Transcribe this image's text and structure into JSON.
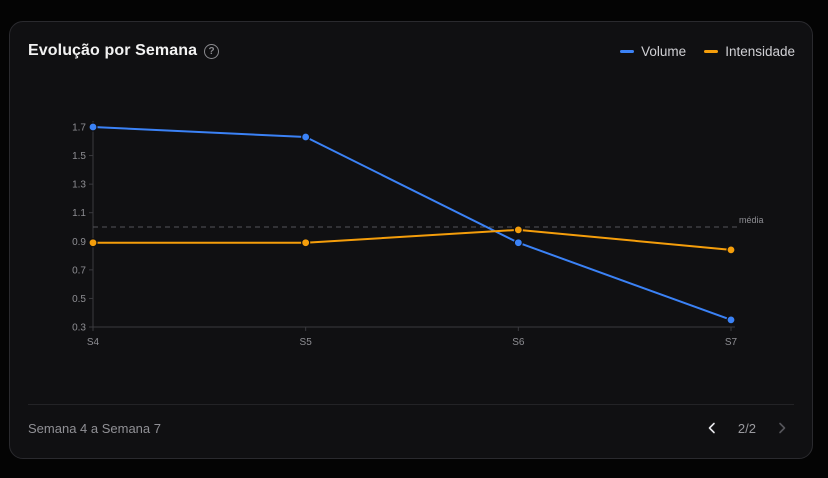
{
  "card": {
    "title": "Evolução por Semana",
    "help_icon": "question-circle-icon"
  },
  "footer": {
    "range_label": "Semana 4 a Semana 7",
    "page_indicator": "2/2",
    "prev_icon": "chevron-left-icon",
    "next_icon": "chevron-right-icon"
  },
  "colors": {
    "volume": "#3b82f6",
    "intensidade": "#f59e0b",
    "reference": "#55555a"
  },
  "chart_data": {
    "type": "line",
    "title": "Evolução por Semana",
    "xlabel": "",
    "ylabel": "",
    "categories": [
      "S4",
      "S5",
      "S6",
      "S7"
    ],
    "series": [
      {
        "name": "Volume",
        "values": [
          1.7,
          1.63,
          0.89,
          0.35
        ]
      },
      {
        "name": "Intensidade",
        "values": [
          0.89,
          0.89,
          0.98,
          0.84
        ]
      }
    ],
    "ylim": [
      0.3,
      1.7
    ],
    "yticks": [
      0.3,
      0.5,
      0.7,
      0.9,
      1.1,
      1.3,
      1.5,
      1.7
    ],
    "reference_line": {
      "label": "média",
      "value": 1.0
    },
    "legend_position": "top-right",
    "grid": false
  }
}
